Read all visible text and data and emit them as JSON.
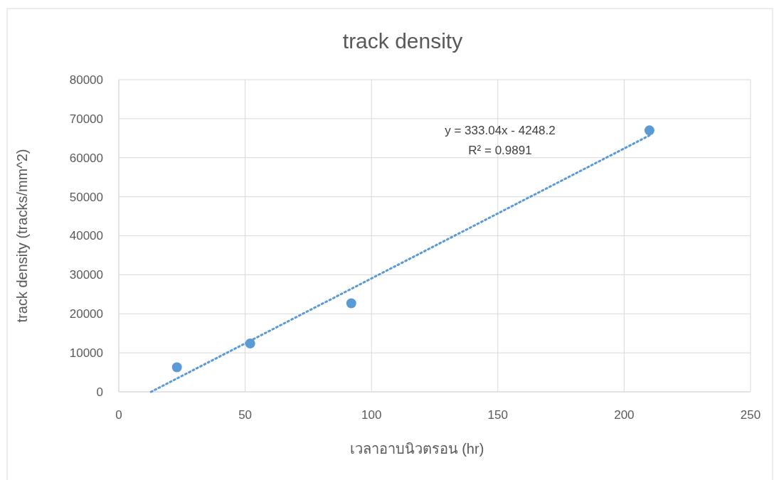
{
  "chart_data": {
    "type": "scatter",
    "title": "track density",
    "xlabel": "เวลาอาบนิวตรอน (hr)",
    "ylabel": "track density (tracks/mm^2)",
    "xlim": [
      0,
      250
    ],
    "xticks": [
      0,
      50,
      100,
      150,
      200,
      250
    ],
    "ylim": [
      0,
      80000
    ],
    "yticks": [
      0,
      10000,
      20000,
      30000,
      40000,
      50000,
      60000,
      70000,
      80000
    ],
    "grid": true,
    "series": [
      {
        "color": "#5b9bd5",
        "marker": "circle",
        "x": [
          23,
          52,
          92,
          210
        ],
        "values": [
          6300,
          12400,
          22700,
          67000
        ]
      },
      {
        "type": "line",
        "color": "#5b9bd5",
        "marker": "none",
        "line_style": "dotted",
        "x": [
          12.76,
          210
        ],
        "values": [
          0,
          65700
        ]
      }
    ],
    "annotations": [
      "y = 333.04x - 4248.2",
      "R² = 0.9891"
    ]
  }
}
